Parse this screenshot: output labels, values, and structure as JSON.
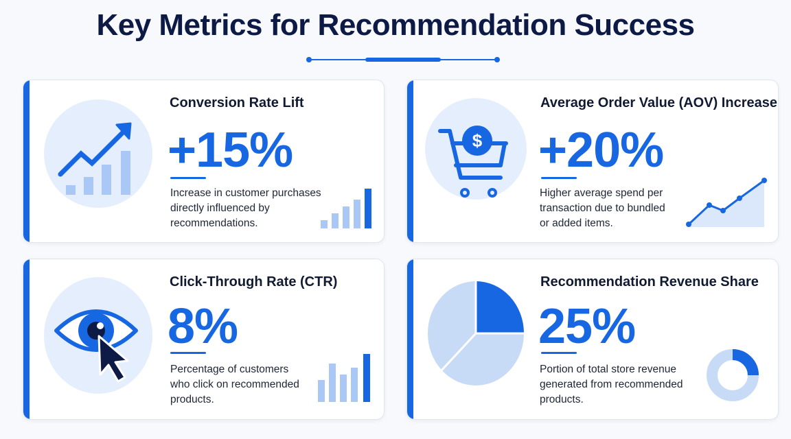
{
  "header": {
    "title": "Key Metrics for Recommendation Success"
  },
  "colors": {
    "accent": "#1767e3",
    "light_accent": "#a9c8f5",
    "icon_bg": "#e4eefc",
    "title": "#0c1a45"
  },
  "cards": [
    {
      "title": "Conversion Rate Lift",
      "metric": "+15%",
      "description_lines": [
        "Increase in customer purchases",
        "directly influenced by",
        "recommendations."
      ],
      "icon": "trending-up-bars-icon",
      "mini_chart": "bar-chart-icon"
    },
    {
      "title": "Average Order Value (AOV) Increase",
      "metric": "+20%",
      "description_lines": [
        "Higher average spend per",
        "transaction due to bundled",
        "or added items."
      ],
      "icon": "shopping-cart-dollar-icon",
      "mini_chart": "line-area-chart-icon"
    },
    {
      "title": "Click-Through Rate (CTR)",
      "metric": "8%",
      "description_lines": [
        "Percentage of customers",
        "who click on recommended",
        "products."
      ],
      "icon": "eye-cursor-icon",
      "mini_chart": "bar-chart-icon"
    },
    {
      "title": "Recommendation Revenue Share",
      "metric": "25%",
      "description_lines": [
        "Portion of total store revenue",
        "generated from recommended",
        "products."
      ],
      "icon": "pie-chart-icon",
      "mini_chart": "donut-chart-icon"
    }
  ]
}
